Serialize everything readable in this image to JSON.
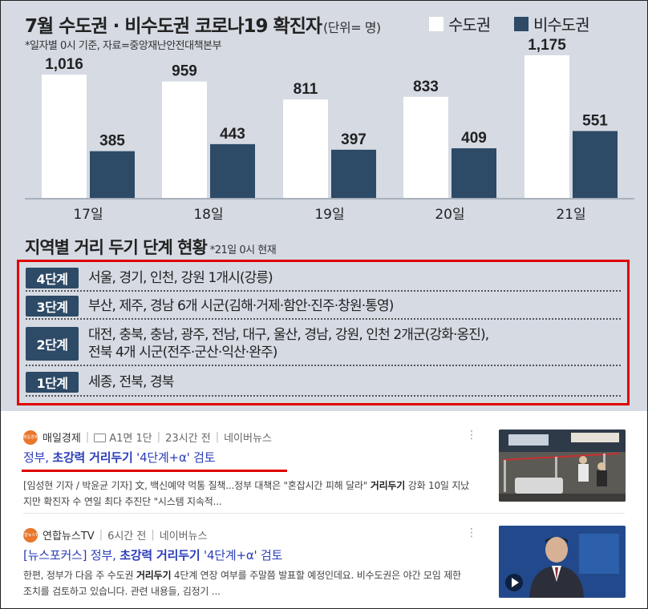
{
  "infographic": {
    "title": "7월 수도권 · 비수도권 코로나19 확진자",
    "unit": "(단위= 명)",
    "note": "*일자별 0시 기준, 자료=중앙재난안전대책본부",
    "legend": [
      {
        "label": "수도권",
        "color": "#ffffff"
      },
      {
        "label": "비수도권",
        "color": "#2d4a66"
      }
    ],
    "section_title": "지역별 거리 두기 단계 현황",
    "section_note": "*21일 0시 현재",
    "levels": [
      {
        "badge": "4단계",
        "text": "서울, 경기, 인천, 강원 1개시(강릉)"
      },
      {
        "badge": "3단계",
        "text": "부산, 제주, 경남 6개 시군(김해·거제·함안·진주·창원·통영)"
      },
      {
        "badge": "2단계",
        "text": "대전, 충북, 충남, 광주, 전남, 대구, 울산, 경남, 강원, 인천 2개군(강화·옹진),\n전북 4개 시군(전주·군산·익산·완주)"
      },
      {
        "badge": "1단계",
        "text": "세종, 전북, 경북"
      }
    ]
  },
  "chart_data": {
    "type": "bar",
    "title": "7월 수도권 · 비수도권 코로나19 확진자",
    "categories": [
      "17일",
      "18일",
      "19일",
      "20일",
      "21일"
    ],
    "series": [
      {
        "name": "수도권",
        "values": [
          1016,
          959,
          811,
          833,
          1175
        ],
        "labels": [
          "1,016",
          "959",
          "811",
          "833",
          "1,175"
        ],
        "color": "#ffffff"
      },
      {
        "name": "비수도권",
        "values": [
          385,
          443,
          397,
          409,
          551
        ],
        "labels": [
          "385",
          "443",
          "397",
          "409",
          "551"
        ],
        "color": "#2d4a66"
      }
    ],
    "ylim": [
      0,
      1250
    ],
    "grid": false,
    "legend": "top-right"
  },
  "news": [
    {
      "press": "매일경제",
      "logo_text": "매일경제",
      "paper_info": "A1면 1단",
      "time": "23시간 전",
      "source": "네이버뉴스",
      "headline_parts": [
        "정부, ",
        "초강력 거리두기",
        " '4단계+α' 검토"
      ],
      "snippet_parts": [
        "[임성현 기자 / 박윤균 기자] 文, 백신예약 먹통 질책...정부 대책은 \"혼잡시간 피해 달라\" ",
        "거리두기",
        " 강화 10일 지났지만 확진자 수 연일 최다 추진단 \"시스템 지속적..."
      ],
      "more_icon": "⋮"
    },
    {
      "press": "연합뉴스TV",
      "logo_text": "연합뉴스TV",
      "time": "6시간 전",
      "source": "네이버뉴스",
      "headline_parts": [
        "[뉴스포커스] 정부, ",
        "초강력 거리두기",
        " '4단계+α' 검토"
      ],
      "snippet_parts": [
        "한편, 정부가 다음 주 수도권 ",
        "거리두기",
        " 4단계 연장 여부를 주말쯤 발표할 예정인데요. 비수도권은 야간 모임 제한 조치를 검토하고 있습니다. 관련 내용들, 김정기 ..."
      ],
      "more_icon": "⋮"
    }
  ]
}
